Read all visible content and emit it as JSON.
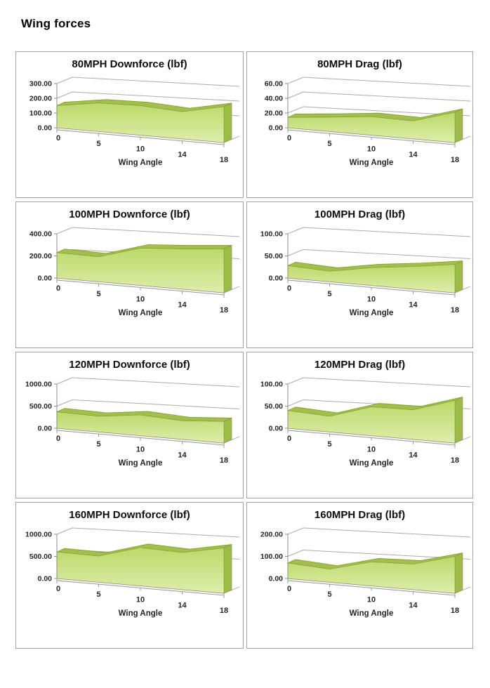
{
  "page": {
    "title": "Wing forces"
  },
  "colors": {
    "area_top_surface": "#a2bf4d",
    "area_face_top": "#bcd968",
    "area_face_bottom": "#ddeeac",
    "area_side": "#9dbb47",
    "area_edge": "#7e9a38",
    "grid": "#ababab",
    "axis": "#8c8c8c",
    "floor": "#9a9a9a",
    "panel_border": "#a3a3a3",
    "text": "#262626"
  },
  "chart_data": [
    {
      "type": "area",
      "title": "80MPH Downforce (lbf)",
      "categories": [
        "0",
        "5",
        "10",
        "14",
        "18"
      ],
      "values": [
        150,
        180,
        175,
        152,
        190
      ],
      "xlabel": "Wing Angle",
      "ylabel": "",
      "ylim": [
        0,
        300
      ],
      "ytick_labels": [
        "300.00",
        "200.00",
        "100.00",
        "0.00"
      ],
      "grid": true,
      "legend": false,
      "style": "3d-perspective"
    },
    {
      "type": "area",
      "title": "80MPH Drag (lbf)",
      "categories": [
        "0",
        "5",
        "10",
        "14",
        "18"
      ],
      "values": [
        14,
        18,
        22,
        20,
        32
      ],
      "xlabel": "Wing Angle",
      "ylabel": "",
      "ylim": [
        0,
        60
      ],
      "ytick_labels": [
        "60.00",
        "40.00",
        "20.00",
        "0.00"
      ],
      "grid": true,
      "legend": false,
      "style": "3d-perspective"
    },
    {
      "type": "area",
      "title": "100MPH Downforce (lbf)",
      "categories": [
        "0",
        "5",
        "10",
        "14",
        "18"
      ],
      "values": [
        230,
        210,
        295,
        300,
        310
      ],
      "xlabel": "Wing Angle",
      "ylabel": "",
      "ylim": [
        0,
        400
      ],
      "ytick_labels": [
        "400.00",
        "200.00",
        "0.00"
      ],
      "grid": true,
      "legend": false,
      "style": "3d-perspective"
    },
    {
      "type": "area",
      "title": "100MPH Drag (lbf)",
      "categories": [
        "0",
        "5",
        "10",
        "14",
        "18"
      ],
      "values": [
        28,
        22,
        35,
        42,
        50
      ],
      "xlabel": "Wing Angle",
      "ylabel": "",
      "ylim": [
        0,
        100
      ],
      "ytick_labels": [
        "100.00",
        "50.00",
        "0.00"
      ],
      "grid": true,
      "legend": false,
      "style": "3d-perspective"
    },
    {
      "type": "area",
      "title": "120MPH Downforce (lbf)",
      "categories": [
        "0",
        "5",
        "10",
        "14",
        "18"
      ],
      "values": [
        370,
        330,
        410,
        345,
        380
      ],
      "xlabel": "Wing Angle",
      "ylabel": "",
      "ylim": [
        0,
        1000
      ],
      "ytick_labels": [
        "1000.00",
        "500.00",
        "0.00"
      ],
      "grid": true,
      "legend": false,
      "style": "3d-perspective"
    },
    {
      "type": "area",
      "title": "120MPH Drag (lbf)",
      "categories": [
        "0",
        "5",
        "10",
        "14",
        "18"
      ],
      "values": [
        40,
        33,
        57,
        55,
        75
      ],
      "xlabel": "Wing Angle",
      "ylabel": "",
      "ylim": [
        0,
        100
      ],
      "ytick_labels": [
        "100.00",
        "50.00",
        "0.00"
      ],
      "grid": true,
      "legend": false,
      "style": "3d-perspective"
    },
    {
      "type": "area",
      "title": "160MPH Downforce (lbf)",
      "categories": [
        "0",
        "5",
        "10",
        "14",
        "18"
      ],
      "values": [
        600,
        550,
        760,
        690,
        800
      ],
      "xlabel": "Wing Angle",
      "ylabel": "",
      "ylim": [
        0,
        1000
      ],
      "ytick_labels": [
        "1000.00",
        "500.00",
        "0.00"
      ],
      "grid": true,
      "legend": false,
      "style": "3d-perspective"
    },
    {
      "type": "area",
      "title": "160MPH Drag (lbf)",
      "categories": [
        "0",
        "5",
        "10",
        "14",
        "18"
      ],
      "values": [
        70,
        55,
        95,
        95,
        130
      ],
      "xlabel": "Wing Angle",
      "ylabel": "",
      "ylim": [
        0,
        200
      ],
      "ytick_labels": [
        "200.00",
        "100.00",
        "0.00"
      ],
      "grid": true,
      "legend": false,
      "style": "3d-perspective"
    }
  ]
}
